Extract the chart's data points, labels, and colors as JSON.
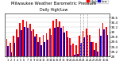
{
  "title": "Milwaukee Weather Barometric Pressure",
  "subtitle": "Daily High/Low",
  "legend_high": "High",
  "legend_low": "Low",
  "high_color": "#ff0000",
  "low_color": "#0000cc",
  "background_color": "#ffffff",
  "ylim": [
    29.0,
    30.75
  ],
  "ytick_vals": [
    29.0,
    29.2,
    29.4,
    29.6,
    29.8,
    30.0,
    30.2,
    30.4,
    30.6
  ],
  "ytick_labels": [
    "29",
    "29.2",
    "29.4",
    "29.6",
    "29.8",
    "30",
    "30.2",
    "30.4",
    "30.6"
  ],
  "n_days": 31,
  "highs": [
    29.72,
    29.55,
    29.85,
    30.1,
    30.38,
    30.5,
    30.45,
    30.35,
    30.1,
    29.92,
    29.8,
    29.88,
    29.95,
    30.15,
    30.48,
    30.52,
    30.45,
    30.25,
    30.05,
    29.75,
    29.52,
    29.48,
    29.85,
    30.05,
    30.15,
    29.9,
    29.6,
    29.55,
    30.15,
    30.38,
    30.2
  ],
  "lows": [
    29.42,
    29.18,
    29.55,
    29.8,
    30.08,
    30.2,
    30.18,
    30.05,
    29.82,
    29.6,
    29.48,
    29.6,
    29.68,
    29.88,
    30.18,
    30.22,
    30.18,
    29.98,
    29.78,
    29.45,
    29.08,
    29.1,
    29.55,
    29.78,
    29.88,
    29.6,
    29.28,
    29.2,
    29.85,
    30.1,
    29.9
  ],
  "dashed_vlines": [
    22,
    23,
    24
  ],
  "yaxis_side": "right"
}
